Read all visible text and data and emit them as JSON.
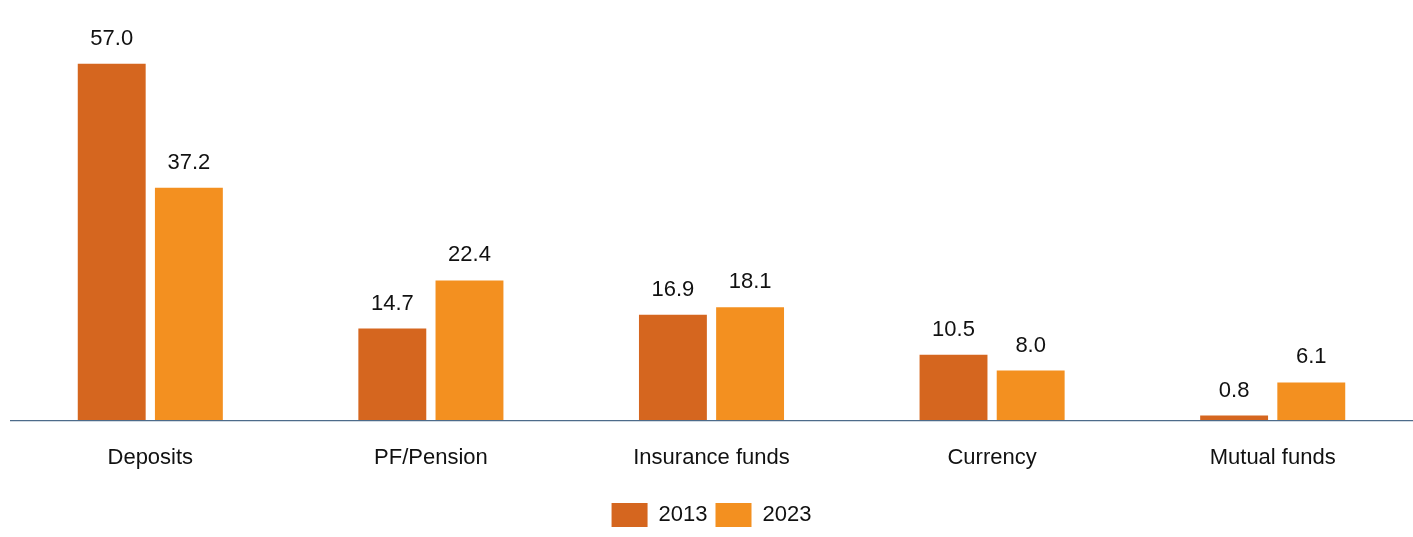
{
  "chart_data": {
    "type": "bar",
    "categories": [
      "Deposits",
      "PF/Pension",
      "Insurance funds",
      "Currency",
      "Mutual funds"
    ],
    "series": [
      {
        "name": "2013",
        "color": "#d5661f",
        "values": [
          57.0,
          14.7,
          16.9,
          10.5,
          0.8
        ],
        "value_labels": [
          "57.0",
          "14.7",
          "16.9",
          "10.5",
          "0.8"
        ]
      },
      {
        "name": "2023",
        "color": "#f39020",
        "values": [
          37.2,
          22.4,
          18.1,
          8.0,
          6.1
        ],
        "value_labels": [
          "37.2",
          "22.4",
          "18.1",
          "8.0",
          "6.1"
        ]
      }
    ],
    "legend": "bottom",
    "grid": false,
    "tick_labels": "x"
  }
}
